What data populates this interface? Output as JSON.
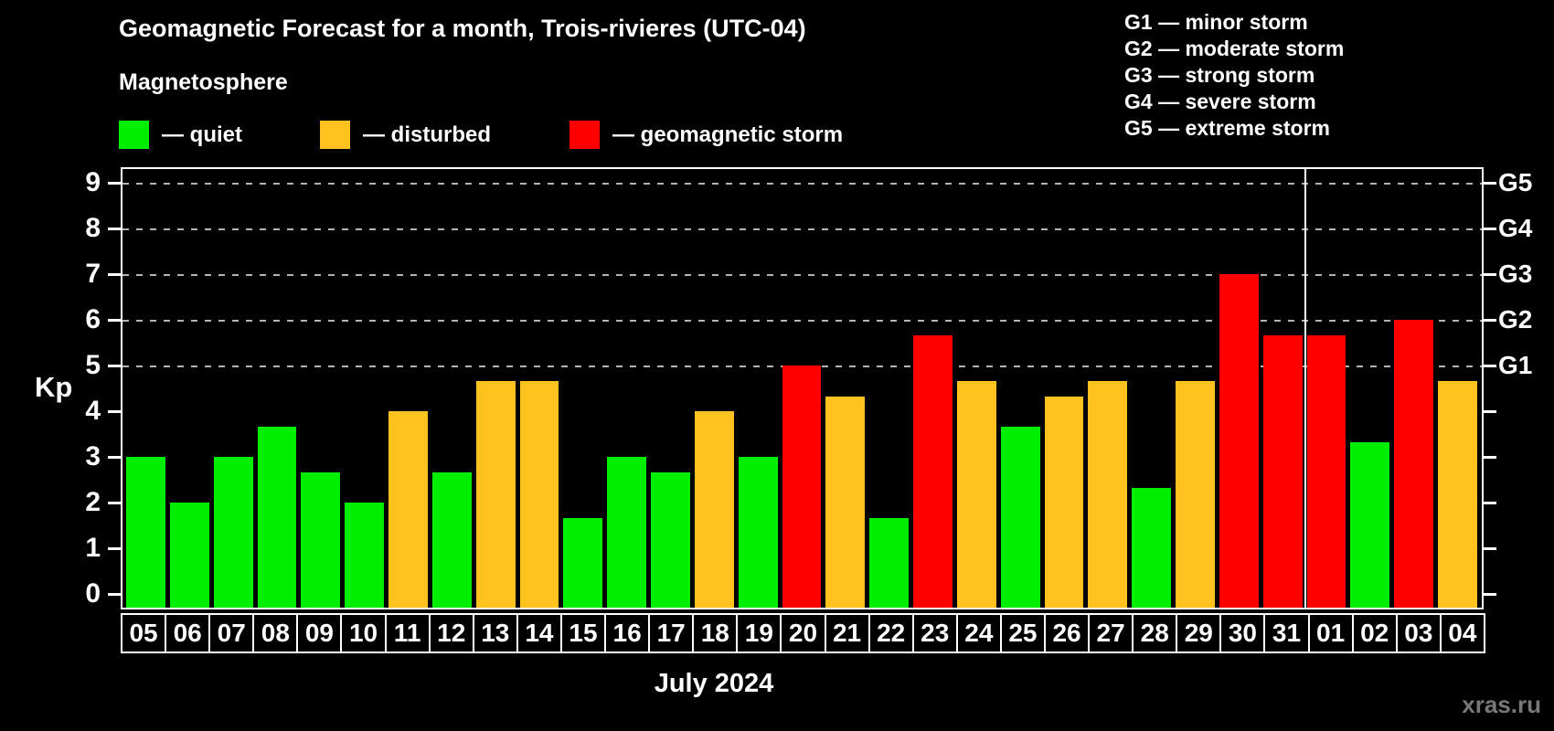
{
  "header": {
    "title": "Geomagnetic Forecast for a month, Trois-rivieres (UTC-04)",
    "subtitle": "Magnetosphere"
  },
  "legend": {
    "items": [
      {
        "name": "quiet",
        "label": "— quiet",
        "color": "#00ee00"
      },
      {
        "name": "disturbed",
        "label": "— disturbed",
        "color": "#ffc21e"
      },
      {
        "name": "storm",
        "label": "— geomagnetic storm",
        "color": "#ff0000"
      }
    ]
  },
  "g_scale_legend": {
    "lines": [
      "G1 — minor storm",
      "G2 — moderate storm",
      "G3 — strong storm",
      "G4 — severe storm",
      "G5 — extreme storm"
    ]
  },
  "axes": {
    "y_label": "Kp",
    "y_ticks": [
      "0",
      "1",
      "2",
      "3",
      "4",
      "5",
      "6",
      "7",
      "8",
      "9"
    ],
    "g_labels": [
      {
        "text": "G1",
        "kp": 5
      },
      {
        "text": "G2",
        "kp": 6
      },
      {
        "text": "G3",
        "kp": 7
      },
      {
        "text": "G4",
        "kp": 8
      },
      {
        "text": "G5",
        "kp": 9
      }
    ]
  },
  "x_axis": {
    "month_label": "July 2024"
  },
  "watermark": "xras.ru",
  "chart_data": {
    "type": "bar",
    "title": "Geomagnetic Forecast for a month, Trois-rivieres (UTC-04)",
    "xlabel": "July 2024",
    "ylabel": "Kp",
    "ylim": [
      0,
      9
    ],
    "grid": "dashed horizontal at Kp 5-9 (G1-G5 zone)",
    "gridlines_kp": [
      5,
      6,
      7,
      8,
      9
    ],
    "month_boundary_after_category": "31",
    "month_boundary_after_index": 26,
    "categories": [
      "05",
      "06",
      "07",
      "08",
      "09",
      "10",
      "11",
      "12",
      "13",
      "14",
      "15",
      "16",
      "17",
      "18",
      "19",
      "20",
      "21",
      "22",
      "23",
      "24",
      "25",
      "26",
      "27",
      "28",
      "29",
      "30",
      "31",
      "01",
      "02",
      "03",
      "04"
    ],
    "values": [
      3,
      2,
      3,
      3.67,
      2.67,
      2,
      4,
      2.67,
      4.67,
      4.67,
      1.67,
      3,
      2.67,
      4,
      3,
      5,
      4.33,
      1.67,
      5.67,
      4.67,
      3.67,
      4.33,
      4.67,
      2.33,
      4.67,
      7,
      5.67,
      5.67,
      3.33,
      6,
      4.67
    ],
    "states": [
      "quiet",
      "quiet",
      "quiet",
      "quiet",
      "quiet",
      "quiet",
      "disturbed",
      "quiet",
      "disturbed",
      "disturbed",
      "quiet",
      "quiet",
      "quiet",
      "disturbed",
      "quiet",
      "storm",
      "disturbed",
      "quiet",
      "storm",
      "disturbed",
      "quiet",
      "disturbed",
      "disturbed",
      "quiet",
      "disturbed",
      "storm",
      "storm",
      "storm",
      "quiet",
      "storm",
      "disturbed"
    ],
    "colors": {
      "quiet": "#00ee00",
      "disturbed": "#ffc21e",
      "storm": "#ff0000"
    },
    "background": "#000000",
    "frame_color": "#ffffff",
    "grid_color": "#b3b3b3"
  }
}
